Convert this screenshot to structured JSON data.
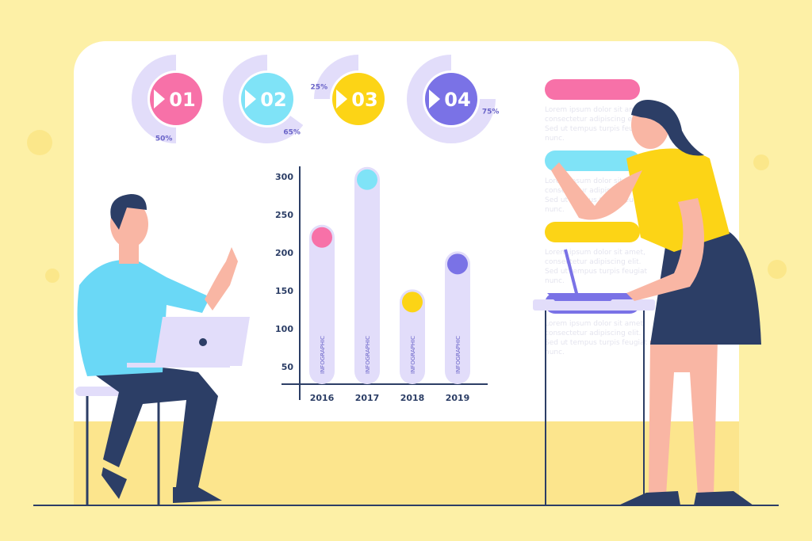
{
  "colors": {
    "background": "#fdf0a6",
    "board": "#ffffff",
    "ring": "#e2ddfa",
    "pink": "#f771a8",
    "cyan": "#7fe3f7",
    "yellow": "#fcd416",
    "purple": "#7a72e6",
    "navy": "#2c3e66",
    "skin": "#f9b6a4"
  },
  "steps": [
    {
      "label": "01",
      "percent_label": "50%",
      "percent": 50,
      "color": "#f771a8"
    },
    {
      "label": "02",
      "percent_label": "65%",
      "percent": 65,
      "color": "#7fe3f7"
    },
    {
      "label": "03",
      "percent_label": "25%",
      "percent": 25,
      "color": "#fcd416"
    },
    {
      "label": "04",
      "percent_label": "75%",
      "percent": 75,
      "color": "#7a72e6"
    }
  ],
  "chart_data": {
    "type": "bar",
    "categories": [
      "2016",
      "2017",
      "2018",
      "2019"
    ],
    "values": [
      220,
      296,
      135,
      185
    ],
    "bar_labels": [
      "INFOGRAPHIC",
      "INFOGRAPHIC",
      "INFOGRAPHIC",
      "INFOGRAPHIC"
    ],
    "yticks": [
      50,
      100,
      150,
      200,
      250,
      300
    ],
    "ylim": [
      27,
      310
    ],
    "colors": [
      "#f771a8",
      "#7fe3f7",
      "#fcd416",
      "#7a72e6"
    ],
    "grid": false
  },
  "notes": [
    {
      "color": "#f771a8",
      "text": "Lorem ipsum dolor sit amet, consectetur adipiscing elit. Sed ut tempus turpis feugiat nunc."
    },
    {
      "color": "#7fe3f7",
      "text": "Lorem ipsum dolor sit amet, consectetur adipiscing elit. Sed ut tempus turpis feugiat nunc."
    },
    {
      "color": "#fcd416",
      "text": "Lorem ipsum dolor sit amet, consectetur adipiscing elit. Sed ut tempus turpis feugiat nunc."
    },
    {
      "color": "#7a72e6",
      "text": "Lorem ipsum dolor sit amet, consectetur adipiscing elit. Sed ut tempus turpis feugiat nunc."
    }
  ]
}
